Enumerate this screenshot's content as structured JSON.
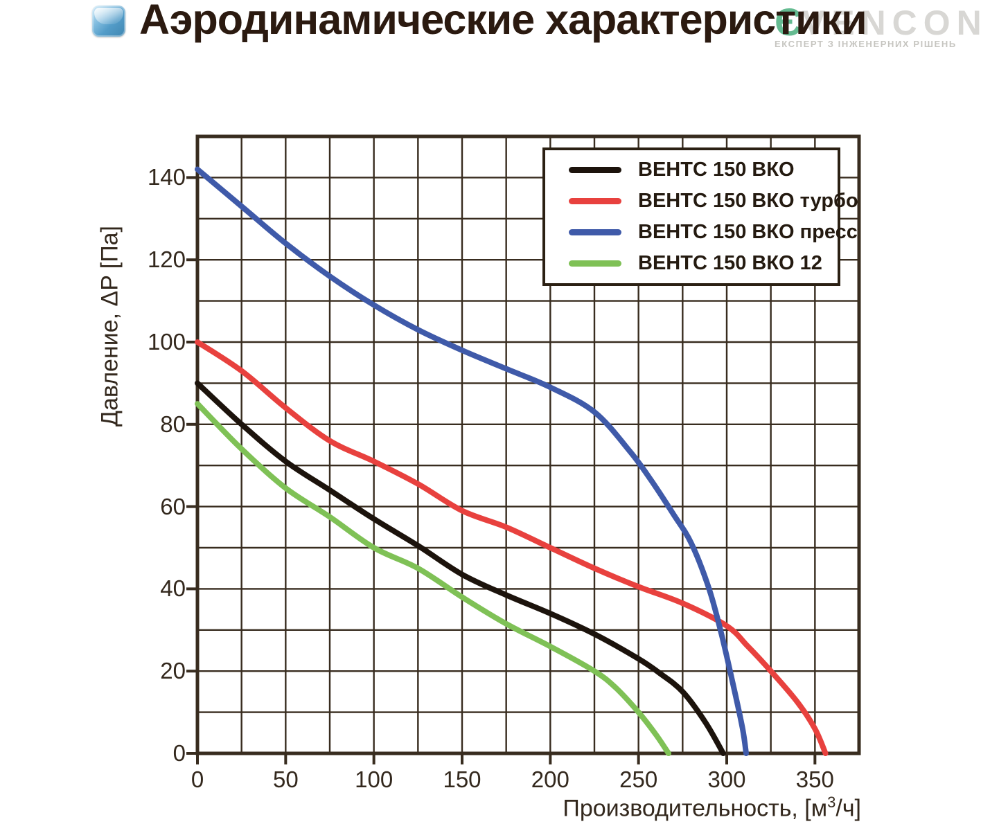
{
  "header": {
    "title": "Аэродинамические характеристики"
  },
  "watermark": {
    "brand": "VENCON",
    "tagline": "ЕКСПЕРТ З ІНЖЕНЕРНИХ РІШЕНЬ"
  },
  "chart_data": {
    "type": "line",
    "title": "Аэродинамические характеристики",
    "xlabel_prefix": "Производительность, [м",
    "xlabel_sup": "3",
    "xlabel_suffix": "/ч]",
    "ylabel": "Давление, ΔP [Па]",
    "xlim": [
      0,
      375
    ],
    "ylim": [
      0,
      150
    ],
    "x_minor_step": 25,
    "y_minor_step": 10,
    "x_ticks": [
      0,
      50,
      100,
      150,
      200,
      250,
      300,
      350
    ],
    "y_ticks": [
      0,
      20,
      40,
      60,
      80,
      100,
      120,
      140
    ],
    "grid": true,
    "legend_position": "top-right",
    "grid_color": "#382c1f",
    "text_color": "#33281d",
    "series": [
      {
        "name": "ВЕНТС 150 ВКО",
        "color": "#1c130c",
        "points": [
          [
            0,
            90
          ],
          [
            25,
            80
          ],
          [
            50,
            71
          ],
          [
            75,
            64
          ],
          [
            100,
            57
          ],
          [
            125,
            50.5
          ],
          [
            150,
            43.5
          ],
          [
            175,
            38.5
          ],
          [
            200,
            34
          ],
          [
            225,
            29
          ],
          [
            250,
            23
          ],
          [
            262,
            19.5
          ],
          [
            275,
            15
          ],
          [
            288,
            7.5
          ],
          [
            298,
            0
          ]
        ]
      },
      {
        "name": "ВЕНТС 150 ВКО турбо",
        "color": "#e8413e",
        "points": [
          [
            0,
            100
          ],
          [
            25,
            93
          ],
          [
            50,
            84
          ],
          [
            75,
            76
          ],
          [
            100,
            71
          ],
          [
            125,
            65.5
          ],
          [
            150,
            59
          ],
          [
            175,
            55
          ],
          [
            200,
            50
          ],
          [
            225,
            45
          ],
          [
            250,
            40.5
          ],
          [
            275,
            36.5
          ],
          [
            300,
            31
          ],
          [
            312,
            26
          ],
          [
            325,
            20
          ],
          [
            340,
            12.5
          ],
          [
            350,
            6
          ],
          [
            356,
            0
          ]
        ]
      },
      {
        "name": "ВЕНТС 150 ВКО пресс",
        "color": "#3f5aa9",
        "points": [
          [
            0,
            142
          ],
          [
            25,
            133
          ],
          [
            50,
            124
          ],
          [
            75,
            116
          ],
          [
            100,
            109
          ],
          [
            125,
            103
          ],
          [
            150,
            98
          ],
          [
            175,
            93.5
          ],
          [
            200,
            89
          ],
          [
            225,
            83
          ],
          [
            245,
            73.5
          ],
          [
            257,
            66.5
          ],
          [
            270,
            58
          ],
          [
            280,
            51
          ],
          [
            290,
            40
          ],
          [
            297,
            29
          ],
          [
            304,
            16
          ],
          [
            309,
            6
          ],
          [
            311,
            0
          ]
        ]
      },
      {
        "name": "ВЕНТС 150 ВКО 12",
        "color": "#7fc156",
        "points": [
          [
            0,
            85
          ],
          [
            25,
            74
          ],
          [
            50,
            64.5
          ],
          [
            75,
            57.5
          ],
          [
            100,
            50
          ],
          [
            125,
            45
          ],
          [
            150,
            38
          ],
          [
            175,
            31.5
          ],
          [
            200,
            26
          ],
          [
            225,
            20
          ],
          [
            237,
            16
          ],
          [
            250,
            10
          ],
          [
            260,
            4.5
          ],
          [
            267,
            0
          ]
        ]
      }
    ]
  }
}
